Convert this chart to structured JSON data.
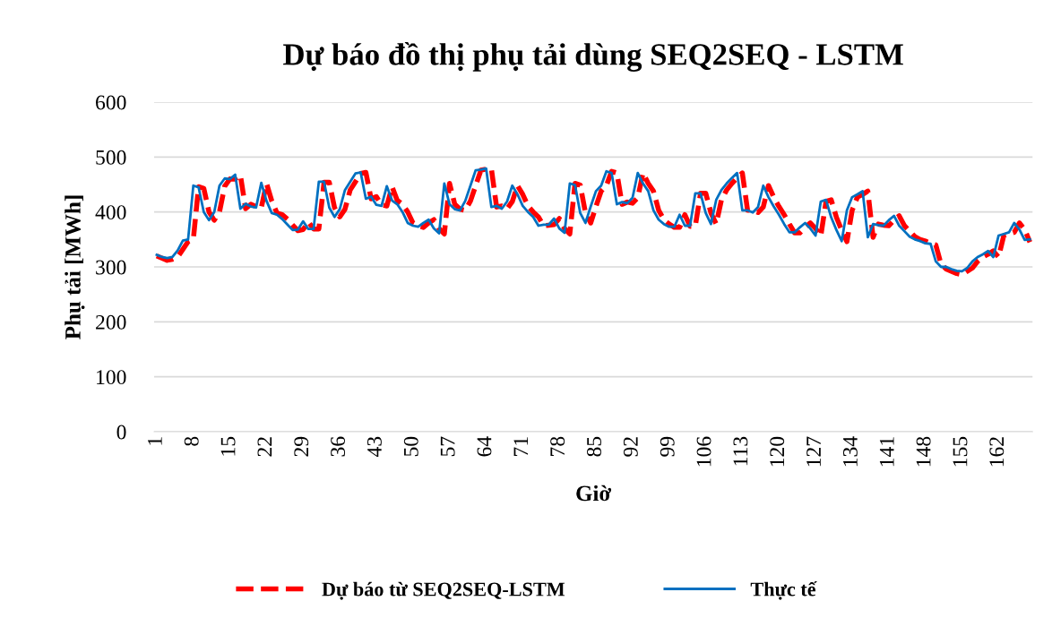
{
  "chart_data": {
    "type": "line",
    "title": "Dự báo đồ thị phụ tải dùng SEQ2SEQ - LSTM",
    "xlabel": "Giờ",
    "ylabel": "Phụ tải [MWh]",
    "categories": [
      "1",
      null,
      null,
      null,
      null,
      null,
      null,
      "8",
      null,
      null,
      null,
      null,
      null,
      null,
      "15",
      null,
      null,
      null,
      null,
      null,
      null,
      "22",
      null,
      null,
      null,
      null,
      null,
      null,
      "29",
      null,
      null,
      null,
      null,
      null,
      null,
      "36",
      null,
      null,
      null,
      null,
      null,
      null,
      "43",
      null,
      null,
      null,
      null,
      null,
      null,
      "50",
      null,
      null,
      null,
      null,
      null,
      null,
      "57",
      null,
      null,
      null,
      null,
      null,
      null,
      "64",
      null,
      null,
      null,
      null,
      null,
      null,
      "71",
      null,
      null,
      null,
      null,
      null,
      null,
      "78",
      null,
      null,
      null,
      null,
      null,
      null,
      "85",
      null,
      null,
      null,
      null,
      null,
      null,
      "92",
      null,
      null,
      null,
      null,
      null,
      null,
      "99",
      null,
      null,
      null,
      null,
      null,
      null,
      "106",
      null,
      null,
      null,
      null,
      null,
      null,
      "113",
      null,
      null,
      null,
      null,
      null,
      null,
      "120",
      null,
      null,
      null,
      null,
      null,
      null,
      "127",
      null,
      null,
      null,
      null,
      null,
      null,
      "134",
      null,
      null,
      null,
      null,
      null,
      null,
      "141",
      null,
      null,
      null,
      null,
      null,
      null,
      "148",
      null,
      null,
      null,
      null,
      null,
      null,
      "155",
      null,
      null,
      null,
      null,
      null,
      null,
      "162",
      null,
      null,
      null,
      null,
      null,
      null
    ],
    "ylim": [
      0,
      600
    ],
    "yticks": [
      0,
      100,
      200,
      300,
      400,
      500,
      600
    ],
    "grid": "y",
    "legend": "bottom",
    "series": [
      {
        "name": "Dự báo từ SEQ2SEQ-LSTM",
        "color": "#ff0000",
        "line_style": "dashed",
        "values": [
          320,
          316,
          312,
          314,
          318,
          332,
          346,
          350,
          446,
          443,
          400,
          385,
          400,
          447,
          460,
          460,
          467,
          406,
          414,
          410,
          408,
          452,
          420,
          398,
          395,
          387,
          376,
          366,
          368,
          382,
          369,
          369,
          454,
          454,
          408,
          391,
          405,
          440,
          455,
          470,
          472,
          424,
          428,
          413,
          411,
          446,
          421,
          414,
          400,
          380,
          375,
          372,
          380,
          386,
          370,
          360,
          452,
          414,
          405,
          403,
          420,
          448,
          476,
          478,
          479,
          409,
          411,
          406,
          419,
          448,
          432,
          411,
          400,
          391,
          375,
          376,
          377,
          388,
          370,
          360,
          452,
          449,
          398,
          380,
          410,
          438,
          448,
          474,
          471,
          414,
          418,
          416,
          426,
          471,
          452,
          438,
          403,
          386,
          378,
          372,
          372,
          395,
          374,
          374,
          434,
          434,
          398,
          378,
          422,
          440,
          452,
          462,
          471,
          403,
          403,
          399,
          409,
          448,
          427,
          410,
          395,
          378,
          362,
          362,
          372,
          380,
          370,
          356,
          419,
          422,
          390,
          367,
          346,
          403,
          427,
          432,
          438,
          354,
          378,
          376,
          375,
          385,
          393,
          375,
          365,
          355,
          350,
          347,
          343,
          340,
          305,
          296,
          292,
          288,
          286,
          292,
          298,
          310,
          318,
          323,
          329,
          318,
          357,
          360,
          363,
          380,
          368,
          345
        ]
      },
      {
        "name": "Thực tế",
        "color": "#0070c0",
        "line_style": "solid",
        "values": [
          322,
          318,
          316,
          318,
          330,
          348,
          350,
          448,
          445,
          400,
          385,
          400,
          448,
          461,
          460,
          468,
          406,
          415,
          410,
          408,
          453,
          420,
          398,
          395,
          387,
          377,
          367,
          368,
          383,
          369,
          369,
          455,
          455,
          408,
          391,
          405,
          440,
          455,
          470,
          472,
          424,
          428,
          413,
          411,
          447,
          421,
          414,
          400,
          380,
          375,
          373,
          380,
          386,
          370,
          361,
          452,
          414,
          405,
          403,
          420,
          448,
          476,
          477,
          479,
          409,
          411,
          406,
          419,
          448,
          432,
          411,
          400,
          391,
          375,
          377,
          377,
          388,
          370,
          362,
          452,
          449,
          398,
          380,
          410,
          438,
          448,
          474,
          471,
          414,
          418,
          416,
          426,
          471,
          452,
          438,
          403,
          386,
          378,
          373,
          373,
          395,
          375,
          375,
          434,
          434,
          398,
          378,
          422,
          440,
          452,
          462,
          471,
          403,
          403,
          399,
          409,
          448,
          427,
          410,
          395,
          378,
          363,
          363,
          372,
          380,
          370,
          357,
          419,
          422,
          390,
          367,
          347,
          403,
          427,
          432,
          438,
          354,
          378,
          376,
          375,
          385,
          393,
          375,
          365,
          355,
          350,
          347,
          343,
          342,
          310,
          300,
          300,
          296,
          293,
          292,
          298,
          310,
          318,
          323,
          329,
          318,
          357,
          360,
          363,
          380,
          368,
          349,
          350
        ]
      }
    ]
  }
}
